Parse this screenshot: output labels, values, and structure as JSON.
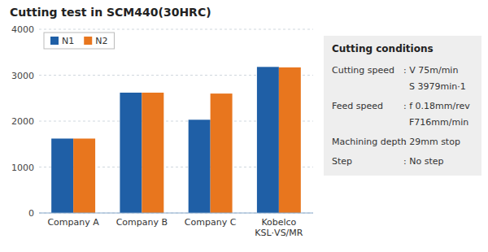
{
  "chart_data": {
    "type": "bar",
    "title": "Cutting test in SCM440(30HRC)",
    "categories": [
      "Company A",
      "Company B",
      "Company C",
      "Kobelco\nKSL·VS/MR"
    ],
    "series": [
      {
        "name": "N1",
        "color": "#1f5fa6",
        "values": [
          1620,
          2620,
          2030,
          3180
        ]
      },
      {
        "name": "N2",
        "color": "#e8761e",
        "values": [
          1620,
          2620,
          2600,
          3170
        ]
      }
    ],
    "ylim": [
      0,
      4000
    ],
    "yticks": [
      0,
      1000,
      2000,
      3000,
      4000
    ],
    "grid": true,
    "legend": "upper left",
    "annotations": [
      "Cutting conditions",
      "Cutting speed",
      ": V 75m/min",
      "  S 3979min·1",
      "Feed speed",
      ": f 0.18mm/rev",
      "  F716mm/min",
      "Machining depth",
      ": 29mm stop",
      "Step",
      ": No step"
    ]
  }
}
